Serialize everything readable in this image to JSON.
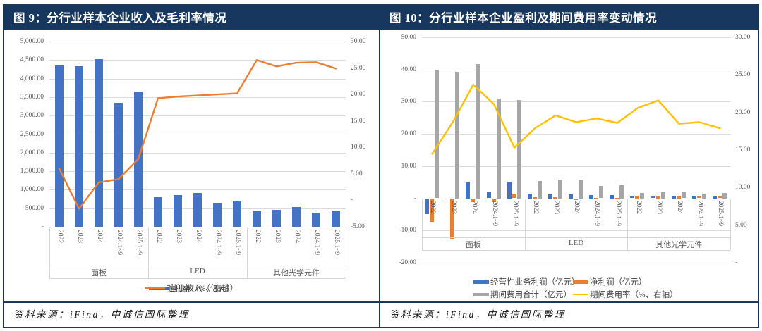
{
  "page": {
    "frame_color": "#17375E",
    "background": "#FFFFFF"
  },
  "panels": [
    {
      "title": "图 9：分行业样本企业收入及毛利率情况",
      "source": "资料来源：iFind，中诚信国际整理"
    },
    {
      "title": "图 10：分行业样本企业盈利及期间费用率变动情况",
      "source": "资料来源：iFind，中诚信国际整理"
    }
  ],
  "chart_data": [
    {
      "type": "bar",
      "combo": "bar+line dual-axis",
      "title": "分行业样本企业收入及毛利率情况",
      "groups": [
        "面板",
        "LED",
        "其他光学元件"
      ],
      "categories_per_group": [
        "2022",
        "2023",
        "2024",
        "2024.1~9",
        "2025.1~9"
      ],
      "series": [
        {
          "name": "营业收入（亿元）",
          "kind": "bar",
          "axis": "left",
          "color": "#4472C4",
          "values": [
            4360,
            4330,
            4530,
            3350,
            3650,
            800,
            860,
            920,
            640,
            710,
            420,
            460,
            540,
            385,
            420
          ]
        },
        {
          "name": "毛利率（%、右轴）",
          "kind": "line",
          "axis": "right",
          "color": "#ED7D31",
          "values": [
            6.0,
            -1.6,
            3.4,
            4.0,
            7.8,
            19.3,
            19.6,
            19.8,
            20.0,
            20.2,
            26.5,
            25.3,
            26.0,
            26.1,
            24.9
          ]
        }
      ],
      "left_axis": {
        "min": 0,
        "max": 5000,
        "step": 500,
        "labels": [
          "5,000.00",
          "4,500.00",
          "4,000.00",
          "3,500.00",
          "3,000.00",
          "2,500.00",
          "2,000.00",
          "1,500.00",
          "1,000.00",
          "500.00",
          "-"
        ]
      },
      "right_axis": {
        "min": -5,
        "max": 30,
        "step": 5,
        "labels": [
          "30.00",
          "25.00",
          "20.00",
          "15.00",
          "10.00",
          "5.00",
          "-",
          "-5.00"
        ]
      },
      "grid": "horizontal",
      "legend_position": "bottom-center"
    },
    {
      "type": "bar",
      "combo": "bar+line dual-axis",
      "title": "分行业样本企业盈利及期间费用率变动情况",
      "groups": [
        "面板",
        "LED",
        "其他光学元件"
      ],
      "categories_per_group": [
        "2022",
        "2023",
        "2024",
        "2024.1~9",
        "2025.1~9"
      ],
      "series": [
        {
          "name": "经营性业务利润（亿元）",
          "kind": "bar",
          "axis": "left",
          "color": "#4472C4",
          "values": [
            -5.0,
            -0.3,
            5.0,
            2.0,
            5.2,
            1.4,
            1.2,
            1.2,
            1.0,
            1.0,
            0.6,
            0.6,
            0.9,
            0.7,
            0.7
          ]
        },
        {
          "name": "净利润（亿元）",
          "kind": "bar",
          "axis": "left",
          "color": "#ED7D31",
          "values": [
            -7.4,
            -12.6,
            -1.2,
            -1.3,
            1.3,
            0.3,
            0.3,
            -0.5,
            0.2,
            0.2,
            0.5,
            0.5,
            0.8,
            0.6,
            0.6
          ]
        },
        {
          "name": "期间费用合计（亿元）",
          "kind": "bar",
          "axis": "left",
          "color": "#A6A6A6",
          "values": [
            39.8,
            39.3,
            41.6,
            30.9,
            30.6,
            5.4,
            5.8,
            5.8,
            3.9,
            4.0,
            1.7,
            1.9,
            2.0,
            1.5,
            1.6
          ]
        },
        {
          "name": "期间费用率（%、右轴）",
          "kind": "line",
          "axis": "right",
          "color": "#FFC000",
          "values": [
            14.5,
            18.7,
            23.7,
            21.1,
            15.3,
            17.9,
            19.6,
            18.7,
            19.2,
            18.6,
            20.6,
            21.6,
            18.5,
            18.7,
            17.9
          ]
        }
      ],
      "left_axis": {
        "min": -20,
        "max": 50,
        "step": 10,
        "labels": [
          "50.00",
          "40.00",
          "30.00",
          "20.00",
          "10.00",
          "-",
          "-10.00",
          "-20.00"
        ]
      },
      "right_axis": {
        "min": 0,
        "max": 30,
        "step": 5,
        "labels": [
          "30.00",
          "25.00",
          "20.00",
          "15.00",
          "10.00",
          "5.00",
          "-"
        ]
      },
      "grid": "horizontal",
      "legend_position": "bottom-left-two-rows"
    }
  ]
}
